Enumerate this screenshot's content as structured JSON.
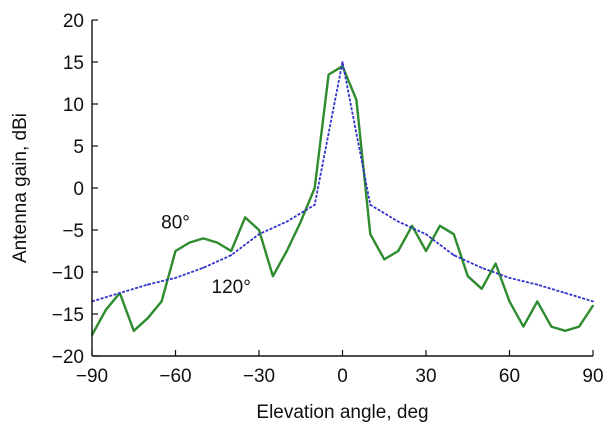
{
  "chart_data": {
    "type": "line",
    "title": "",
    "xlabel": "Elevation angle, deg",
    "ylabel": "Antenna gain, dBi",
    "xlim": [
      -90,
      90
    ],
    "ylim": [
      -20,
      20
    ],
    "xticks": [
      -90,
      -60,
      -30,
      0,
      30,
      60,
      90
    ],
    "yticks": [
      -20,
      -15,
      -10,
      -5,
      0,
      5,
      10,
      15,
      20
    ],
    "xtick_labels": [
      "−90",
      "−60",
      "−30",
      "0",
      "30",
      "60",
      "90"
    ],
    "ytick_labels": [
      "−20",
      "−15",
      "−10",
      "−5",
      "0",
      "5",
      "10",
      "15",
      "20"
    ],
    "grid": false,
    "series": [
      {
        "color": "#2e8b2e",
        "x": [
          -90,
          -85,
          -80,
          -75,
          -70,
          -65,
          -60,
          -55,
          -50,
          -45,
          -40,
          -35,
          -30,
          -25,
          -20,
          -15,
          -10,
          -5,
          0,
          5,
          10,
          15,
          20,
          25,
          30,
          35,
          40,
          45,
          50,
          55,
          60,
          65,
          70,
          75,
          80,
          85,
          90
        ],
        "y": [
          -17.5,
          -14.5,
          -12.5,
          -17.0,
          -15.5,
          -13.5,
          -7.5,
          -6.5,
          -6.0,
          -6.5,
          -7.5,
          -3.5,
          -5.0,
          -10.5,
          -7.5,
          -4.0,
          0.0,
          13.5,
          14.5,
          10.5,
          -5.5,
          -8.5,
          -7.5,
          -4.5,
          -7.5,
          -4.5,
          -5.5,
          -10.5,
          -12.0,
          -9.0,
          -13.5,
          -16.5,
          -13.5,
          -16.5,
          -17.0,
          -16.5,
          -14.0
        ]
      },
      {
        "color": "#3333cc",
        "dashed": true,
        "x": [
          -90,
          -80,
          -70,
          -60,
          -50,
          -40,
          -30,
          -20,
          -10,
          0,
          10,
          20,
          30,
          40,
          50,
          60,
          70,
          80,
          90
        ],
        "y": [
          -13.5,
          -12.5,
          -11.5,
          -10.7,
          -9.5,
          -8.0,
          -5.5,
          -4.0,
          -2.0,
          15.0,
          -2.0,
          -4.0,
          -5.5,
          -8.0,
          -9.5,
          -10.7,
          -11.5,
          -12.5,
          -13.5
        ]
      }
    ],
    "annotations": [
      {
        "text": "80°",
        "x": -60,
        "y": -4.8
      },
      {
        "text": "120°",
        "x": -40,
        "y": -12.5
      }
    ]
  }
}
